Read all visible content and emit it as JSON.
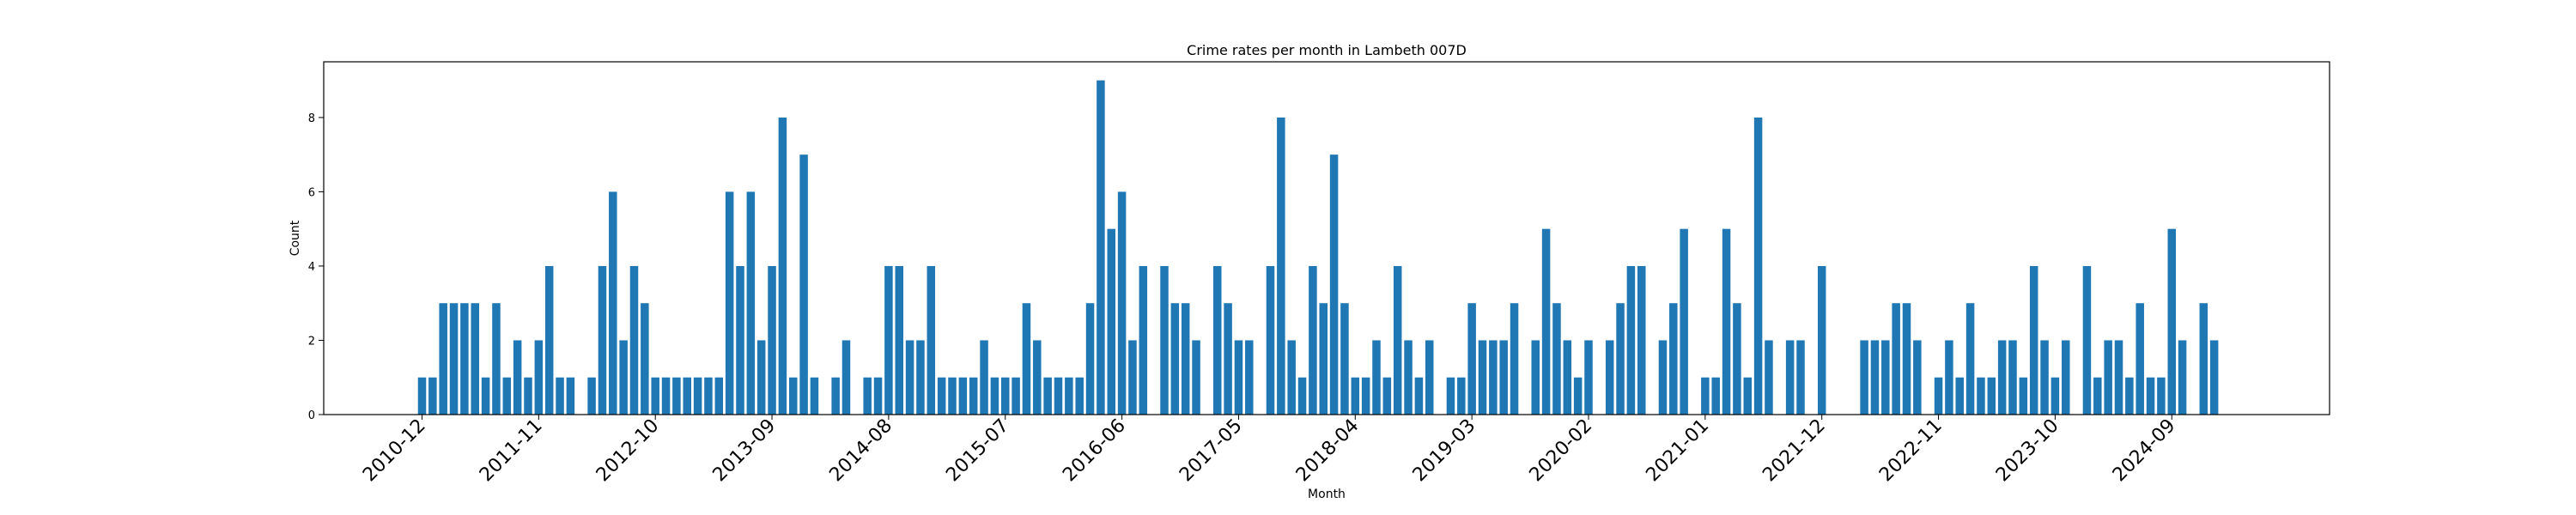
{
  "chart_data": {
    "type": "bar",
    "title": "Crime rates per month in Lambeth 007D",
    "xlabel": "Month",
    "ylabel": "Count",
    "ylim": [
      0,
      9.5
    ],
    "yticks": [
      0,
      2,
      4,
      6,
      8
    ],
    "color": "#1f77b4",
    "start_month": "2010-12",
    "tick_labels": [
      "2010-12",
      "2011-11",
      "2012-10",
      "2013-09",
      "2014-08",
      "2015-07",
      "2016-06",
      "2017-05",
      "2018-04",
      "2019-03",
      "2020-02",
      "2021-01",
      "2021-12",
      "2022-11",
      "2023-10",
      "2024-09"
    ],
    "values": [
      1,
      1,
      3,
      3,
      3,
      3,
      1,
      3,
      1,
      2,
      1,
      2,
      4,
      1,
      1,
      0,
      1,
      4,
      6,
      2,
      4,
      3,
      1,
      1,
      1,
      1,
      1,
      1,
      1,
      6,
      4,
      6,
      2,
      4,
      8,
      1,
      7,
      1,
      0,
      1,
      2,
      0,
      1,
      1,
      4,
      4,
      2,
      2,
      4,
      1,
      1,
      1,
      1,
      2,
      1,
      1,
      1,
      3,
      2,
      1,
      1,
      1,
      1,
      3,
      9,
      5,
      6,
      2,
      4,
      0,
      4,
      3,
      3,
      2,
      0,
      4,
      3,
      2,
      2,
      0,
      4,
      8,
      2,
      1,
      4,
      3,
      7,
      3,
      1,
      1,
      2,
      1,
      4,
      2,
      1,
      2,
      0,
      1,
      1,
      3,
      2,
      2,
      2,
      3,
      0,
      2,
      5,
      3,
      2,
      1,
      2,
      0,
      2,
      3,
      4,
      4,
      0,
      2,
      3,
      5,
      0,
      1,
      1,
      5,
      3,
      1,
      8,
      2,
      0,
      2,
      2,
      0,
      4,
      0,
      0,
      0,
      2,
      2,
      2,
      3,
      3,
      2,
      0,
      1,
      2,
      1,
      3,
      1,
      1,
      2,
      2,
      1,
      4,
      2,
      1,
      2,
      0,
      4,
      1,
      2,
      2,
      1,
      3,
      1,
      1,
      5,
      2,
      0,
      3,
      2
    ]
  }
}
